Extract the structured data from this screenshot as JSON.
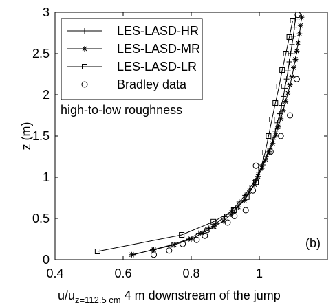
{
  "chart_data": {
    "type": "line",
    "xlabel_main": "u/u",
    "xlabel_sub": "z=112.5 cm",
    "xlabel_rest": " 4 m downstream of the jump",
    "ylabel": "z (m)",
    "annotation": "high-to-low roughness",
    "panel_label": "(b)",
    "xlim": [
      0.4,
      1.2
    ],
    "ylim": [
      0,
      3
    ],
    "xticks": [
      0.4,
      0.6,
      0.8,
      1
    ],
    "xtick_labels": [
      "0.4",
      "0.6",
      "0.8",
      "1"
    ],
    "yticks": [
      0,
      0.5,
      1,
      1.5,
      2,
      2.5,
      3
    ],
    "ytick_labels": [
      "0",
      "0.5",
      "1",
      "1.5",
      "2",
      "2.5",
      "3"
    ],
    "grid": false,
    "legend_position": "top-left",
    "series": [
      {
        "name": "LES-LASD-HR",
        "marker": "plus",
        "points": [
          [
            0.63,
            0.06
          ],
          [
            0.687,
            0.12
          ],
          [
            0.743,
            0.18
          ],
          [
            0.792,
            0.25
          ],
          [
            0.822,
            0.32
          ],
          [
            0.852,
            0.38
          ],
          [
            0.873,
            0.44
          ],
          [
            0.898,
            0.52
          ],
          [
            0.92,
            0.6
          ],
          [
            0.941,
            0.7
          ],
          [
            0.958,
            0.78
          ],
          [
            0.972,
            0.87
          ],
          [
            0.988,
            0.96
          ],
          [
            0.998,
            1.06
          ],
          [
            1.01,
            1.15
          ],
          [
            1.02,
            1.25
          ],
          [
            1.031,
            1.35
          ],
          [
            1.04,
            1.46
          ],
          [
            1.047,
            1.56
          ],
          [
            1.053,
            1.66
          ],
          [
            1.06,
            1.77
          ],
          [
            1.065,
            1.87
          ],
          [
            1.071,
            1.98
          ],
          [
            1.075,
            2.08
          ],
          [
            1.08,
            2.19
          ],
          [
            1.084,
            2.29
          ],
          [
            1.088,
            2.4
          ],
          [
            1.092,
            2.5
          ],
          [
            1.096,
            2.61
          ],
          [
            1.1,
            2.71
          ],
          [
            1.103,
            2.82
          ],
          [
            1.106,
            2.92
          ],
          [
            1.108,
            3.0
          ]
        ]
      },
      {
        "name": "LES-LASD-MR",
        "marker": "star",
        "points": [
          [
            0.625,
            0.06
          ],
          [
            0.69,
            0.12
          ],
          [
            0.75,
            0.18
          ],
          [
            0.8,
            0.25
          ],
          [
            0.832,
            0.32
          ],
          [
            0.867,
            0.4
          ],
          [
            0.895,
            0.47
          ],
          [
            0.917,
            0.55
          ],
          [
            0.938,
            0.64
          ],
          [
            0.956,
            0.72
          ],
          [
            0.97,
            0.82
          ],
          [
            0.986,
            0.91
          ],
          [
            0.996,
            1.01
          ],
          [
            1.008,
            1.11
          ],
          [
            1.018,
            1.21
          ],
          [
            1.029,
            1.31
          ],
          [
            1.039,
            1.41
          ],
          [
            1.048,
            1.51
          ],
          [
            1.055,
            1.61
          ],
          [
            1.063,
            1.71
          ],
          [
            1.07,
            1.81
          ],
          [
            1.077,
            1.92
          ],
          [
            1.084,
            2.02
          ],
          [
            1.09,
            2.12
          ],
          [
            1.096,
            2.22
          ],
          [
            1.101,
            2.33
          ],
          [
            1.106,
            2.43
          ],
          [
            1.11,
            2.53
          ],
          [
            1.114,
            2.63
          ],
          [
            1.118,
            2.74
          ],
          [
            1.121,
            2.84
          ],
          [
            1.124,
            2.94
          ]
        ]
      },
      {
        "name": "LES-LASD-LR",
        "marker": "square",
        "points": [
          [
            0.525,
            0.1
          ],
          [
            0.772,
            0.3
          ],
          [
            0.865,
            0.46
          ],
          [
            0.925,
            0.6
          ],
          [
            0.963,
            0.76
          ],
          [
            0.99,
            0.94
          ],
          [
            1.005,
            1.12
          ],
          [
            1.017,
            1.3
          ],
          [
            1.027,
            1.5
          ],
          [
            1.037,
            1.7
          ],
          [
            1.047,
            1.9
          ],
          [
            1.058,
            2.1
          ],
          [
            1.067,
            2.3
          ],
          [
            1.078,
            2.5
          ],
          [
            1.088,
            2.7
          ],
          [
            1.098,
            2.9
          ]
        ]
      },
      {
        "name": "Bradley data",
        "marker": "circle",
        "points": [
          [
            0.69,
            0.06
          ],
          [
            0.735,
            0.11
          ],
          [
            0.775,
            0.19
          ],
          [
            0.816,
            0.24
          ],
          [
            0.84,
            0.29
          ],
          [
            0.847,
            0.36
          ],
          [
            0.907,
            0.45
          ],
          [
            0.927,
            0.53
          ],
          [
            0.96,
            0.6
          ],
          [
            0.981,
            0.84
          ],
          [
            0.99,
            1.14
          ],
          [
            1.033,
            1.31
          ],
          [
            1.063,
            1.5
          ],
          [
            1.09,
            1.75
          ],
          [
            1.11,
            2.19
          ],
          [
            1.113,
            2.97
          ]
        ]
      }
    ]
  }
}
